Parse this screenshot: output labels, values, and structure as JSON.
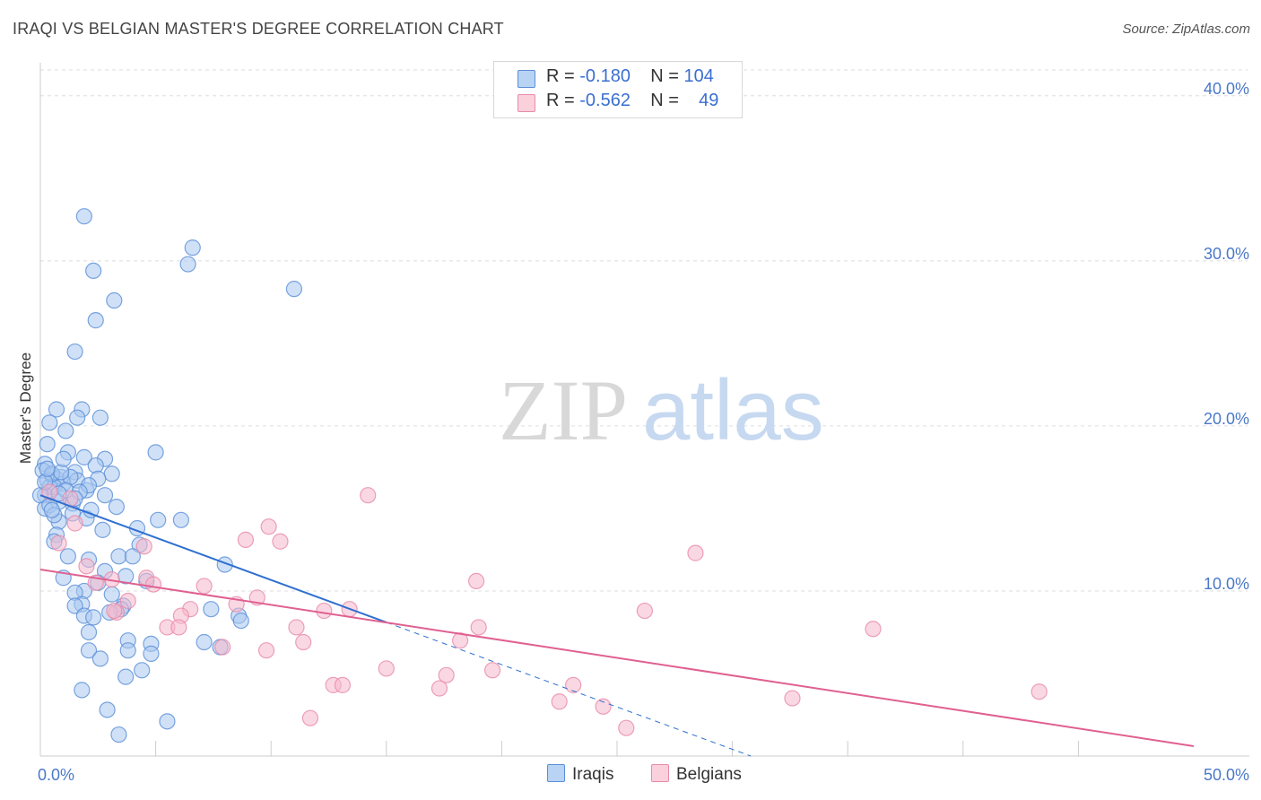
{
  "title": "IRAQI VS BELGIAN MASTER'S DEGREE CORRELATION CHART",
  "source": "Source: ZipAtlas.com",
  "watermark": {
    "zip": "ZIP",
    "atlas": "atlas"
  },
  "legend": {
    "rows": [
      {
        "r_label": "R = ",
        "r_value": "-0.180",
        "n_label": "N = ",
        "n_value": "104"
      },
      {
        "r_label": "R = ",
        "r_value": "-0.562",
        "n_label": "N = ",
        "n_value": "49"
      }
    ]
  },
  "colors": {
    "iraqis_fill": "#a9c8f0",
    "iraqis_stroke": "#5a8fd8",
    "iraqis_line": "#2f6fd0",
    "belgians_fill": "#f6b8cc",
    "belgians_stroke": "#e88aa8",
    "belgians_line": "#e06090",
    "grid": "#dddddd",
    "tick_label": "#4a78c8"
  },
  "chart_data": {
    "type": "scatter",
    "title": "IRAQI VS BELGIAN MASTER'S DEGREE CORRELATION CHART",
    "xlabel": "",
    "ylabel": "Master's Degree",
    "xlim": [
      0,
      50
    ],
    "ylim": [
      0,
      42
    ],
    "x_tick_labels": [
      {
        "value": 0,
        "label": "0.0%"
      },
      {
        "value": 50,
        "label": "50.0%"
      }
    ],
    "y_tick_labels": [
      {
        "value": 10,
        "label": "10.0%"
      },
      {
        "value": 20,
        "label": "20.0%"
      },
      {
        "value": 30,
        "label": "30.0%"
      },
      {
        "value": 40,
        "label": "40.0%"
      }
    ],
    "grid": true,
    "legend_position": "top-center",
    "series": [
      {
        "name": "Iraqis",
        "R": -0.18,
        "N": 104,
        "trend": {
          "x0": 0,
          "y0": 15.8,
          "x1": 15,
          "y1": 8.1,
          "dashed_to_x": 30.8,
          "dashed_to_y": 0
        },
        "points": [
          [
            1.9,
            32.7
          ],
          [
            6.6,
            30.8
          ],
          [
            6.4,
            29.8
          ],
          [
            2.3,
            29.4
          ],
          [
            11.0,
            28.3
          ],
          [
            3.2,
            27.6
          ],
          [
            2.4,
            26.4
          ],
          [
            1.5,
            24.5
          ],
          [
            1.8,
            21.0
          ],
          [
            0.7,
            21.0
          ],
          [
            0.4,
            20.2
          ],
          [
            1.6,
            20.5
          ],
          [
            2.6,
            20.5
          ],
          [
            1.1,
            19.7
          ],
          [
            0.3,
            18.9
          ],
          [
            1.2,
            18.4
          ],
          [
            5.0,
            18.4
          ],
          [
            0.2,
            17.7
          ],
          [
            1.9,
            18.1
          ],
          [
            2.8,
            18.0
          ],
          [
            1.5,
            17.2
          ],
          [
            2.4,
            17.6
          ],
          [
            0.1,
            17.3
          ],
          [
            0.5,
            17.0
          ],
          [
            0.7,
            16.8
          ],
          [
            1.0,
            16.5
          ],
          [
            3.1,
            17.1
          ],
          [
            0.3,
            16.7
          ],
          [
            0.9,
            16.9
          ],
          [
            0.4,
            16.3
          ],
          [
            2.5,
            16.8
          ],
          [
            1.6,
            16.7
          ],
          [
            0.6,
            16.3
          ],
          [
            2.0,
            16.1
          ],
          [
            2.1,
            16.4
          ],
          [
            0.2,
            15.8
          ],
          [
            0.8,
            15.4
          ],
          [
            1.4,
            15.3
          ],
          [
            0.2,
            15.0
          ],
          [
            0.0,
            15.8
          ],
          [
            2.0,
            14.4
          ],
          [
            0.8,
            14.2
          ],
          [
            1.4,
            14.7
          ],
          [
            4.2,
            13.8
          ],
          [
            6.1,
            14.3
          ],
          [
            5.1,
            14.3
          ],
          [
            2.7,
            13.7
          ],
          [
            0.7,
            13.4
          ],
          [
            0.6,
            13.0
          ],
          [
            4.3,
            12.8
          ],
          [
            1.2,
            12.1
          ],
          [
            2.1,
            11.9
          ],
          [
            3.4,
            12.1
          ],
          [
            4.0,
            12.1
          ],
          [
            8.0,
            11.6
          ],
          [
            2.8,
            11.2
          ],
          [
            3.7,
            10.9
          ],
          [
            1.0,
            10.8
          ],
          [
            2.5,
            10.5
          ],
          [
            4.6,
            10.6
          ],
          [
            1.9,
            10.0
          ],
          [
            3.1,
            9.8
          ],
          [
            1.5,
            9.9
          ],
          [
            1.8,
            9.2
          ],
          [
            1.5,
            9.1
          ],
          [
            3.6,
            9.1
          ],
          [
            3.5,
            8.9
          ],
          [
            7.4,
            8.9
          ],
          [
            3.0,
            8.7
          ],
          [
            1.9,
            8.5
          ],
          [
            2.3,
            8.4
          ],
          [
            8.6,
            8.5
          ],
          [
            8.7,
            8.2
          ],
          [
            2.1,
            7.5
          ],
          [
            3.8,
            7.0
          ],
          [
            4.8,
            6.8
          ],
          [
            7.1,
            6.9
          ],
          [
            7.8,
            6.6
          ],
          [
            2.1,
            6.4
          ],
          [
            3.8,
            6.4
          ],
          [
            4.8,
            6.2
          ],
          [
            2.6,
            5.9
          ],
          [
            4.4,
            5.2
          ],
          [
            3.7,
            4.8
          ],
          [
            1.8,
            4.0
          ],
          [
            2.9,
            2.8
          ],
          [
            5.5,
            2.1
          ],
          [
            3.4,
            1.3
          ],
          [
            0.5,
            17.1
          ],
          [
            1.3,
            16.9
          ],
          [
            0.9,
            17.2
          ],
          [
            0.2,
            16.6
          ],
          [
            1.1,
            16.1
          ],
          [
            0.4,
            15.2
          ],
          [
            2.2,
            14.9
          ],
          [
            0.6,
            14.6
          ],
          [
            1.7,
            16.0
          ],
          [
            0.3,
            17.4
          ],
          [
            1.0,
            18.0
          ],
          [
            0.8,
            15.9
          ],
          [
            1.5,
            15.6
          ],
          [
            2.8,
            15.8
          ],
          [
            3.3,
            15.1
          ],
          [
            0.5,
            14.9
          ]
        ]
      },
      {
        "name": "Belgians",
        "R": -0.562,
        "N": 49,
        "trend": {
          "x0": 0,
          "y0": 11.3,
          "x1": 50,
          "y1": 0.6
        },
        "points": [
          [
            14.2,
            15.8
          ],
          [
            0.4,
            16.0
          ],
          [
            1.3,
            15.6
          ],
          [
            1.5,
            14.1
          ],
          [
            9.9,
            13.9
          ],
          [
            8.9,
            13.1
          ],
          [
            10.4,
            13.0
          ],
          [
            0.8,
            12.9
          ],
          [
            4.5,
            12.7
          ],
          [
            28.4,
            12.3
          ],
          [
            2.0,
            11.5
          ],
          [
            4.6,
            10.8
          ],
          [
            3.1,
            10.7
          ],
          [
            2.4,
            10.5
          ],
          [
            18.9,
            10.6
          ],
          [
            4.9,
            10.4
          ],
          [
            7.1,
            10.3
          ],
          [
            9.4,
            9.6
          ],
          [
            3.8,
            9.4
          ],
          [
            8.5,
            9.2
          ],
          [
            6.5,
            8.9
          ],
          [
            12.3,
            8.8
          ],
          [
            13.4,
            8.9
          ],
          [
            26.2,
            8.8
          ],
          [
            3.3,
            8.7
          ],
          [
            6.1,
            8.5
          ],
          [
            5.5,
            7.8
          ],
          [
            6.0,
            7.8
          ],
          [
            11.1,
            7.8
          ],
          [
            19.0,
            7.8
          ],
          [
            36.1,
            7.7
          ],
          [
            18.2,
            7.0
          ],
          [
            11.4,
            6.9
          ],
          [
            7.9,
            6.6
          ],
          [
            9.8,
            6.4
          ],
          [
            15.0,
            5.3
          ],
          [
            17.6,
            4.9
          ],
          [
            19.6,
            5.2
          ],
          [
            12.7,
            4.3
          ],
          [
            13.1,
            4.3
          ],
          [
            23.1,
            4.3
          ],
          [
            17.3,
            4.1
          ],
          [
            32.6,
            3.5
          ],
          [
            43.3,
            3.9
          ],
          [
            22.5,
            3.3
          ],
          [
            24.4,
            3.0
          ],
          [
            11.7,
            2.3
          ],
          [
            25.4,
            1.7
          ],
          [
            3.2,
            8.8
          ]
        ]
      }
    ]
  }
}
